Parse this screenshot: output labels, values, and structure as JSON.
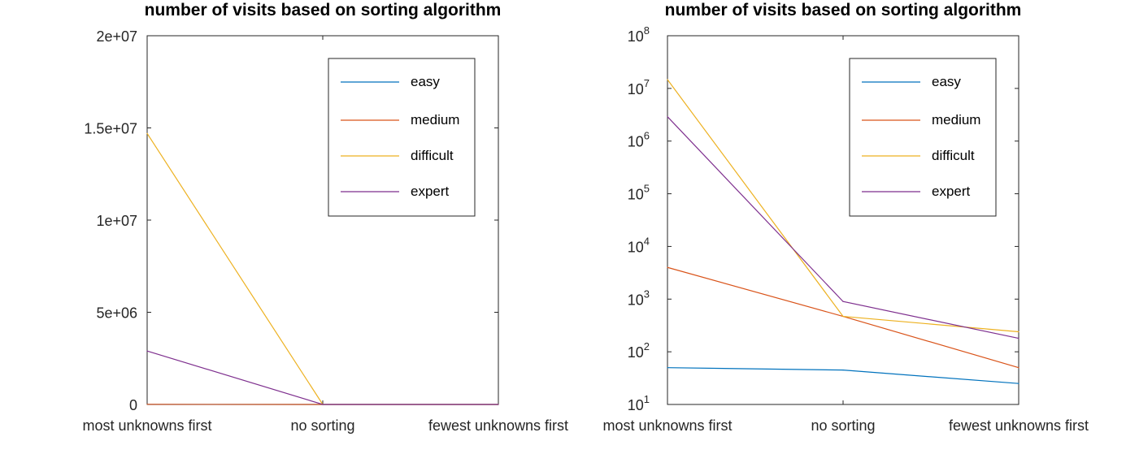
{
  "chart_data": [
    {
      "type": "line",
      "title": "number of visits based on sorting algorithm",
      "xlabel": "",
      "ylabel": "",
      "categories": [
        "most unknowns first",
        "no sorting",
        "fewest unknowns first"
      ],
      "ylim": [
        0,
        20000000
      ],
      "y_scale": "linear",
      "y_ticks": [
        "0",
        "5e+06",
        "1e+07",
        "1.5e+07",
        "2e+07"
      ],
      "grid": false,
      "legend_position": "top-right",
      "series": [
        {
          "name": "easy",
          "color": "#0072BD",
          "values": [
            50,
            45,
            25
          ]
        },
        {
          "name": "medium",
          "color": "#D95319",
          "values": [
            4000,
            470,
            50
          ]
        },
        {
          "name": "difficult",
          "color": "#EDB120",
          "values": [
            14700000,
            470,
            240
          ]
        },
        {
          "name": "expert",
          "color": "#7E2F8E",
          "values": [
            2900000,
            900,
            180
          ]
        }
      ]
    },
    {
      "type": "line",
      "title": "number of visits based on sorting algorithm",
      "xlabel": "",
      "ylabel": "",
      "categories": [
        "most unknowns first",
        "no sorting",
        "fewest unknowns first"
      ],
      "ylim": [
        10,
        100000000
      ],
      "y_scale": "log",
      "y_ticks": [
        {
          "base": "10",
          "exp": "1"
        },
        {
          "base": "10",
          "exp": "2"
        },
        {
          "base": "10",
          "exp": "3"
        },
        {
          "base": "10",
          "exp": "4"
        },
        {
          "base": "10",
          "exp": "5"
        },
        {
          "base": "10",
          "exp": "6"
        },
        {
          "base": "10",
          "exp": "7"
        },
        {
          "base": "10",
          "exp": "8"
        }
      ],
      "grid": false,
      "legend_position": "top-right",
      "series": [
        {
          "name": "easy",
          "color": "#0072BD",
          "values": [
            50,
            45,
            25
          ]
        },
        {
          "name": "medium",
          "color": "#D95319",
          "values": [
            4000,
            470,
            50
          ]
        },
        {
          "name": "difficult",
          "color": "#EDB120",
          "values": [
            14700000,
            470,
            240
          ]
        },
        {
          "name": "expert",
          "color": "#7E2F8E",
          "values": [
            2900000,
            900,
            180
          ]
        }
      ]
    }
  ]
}
